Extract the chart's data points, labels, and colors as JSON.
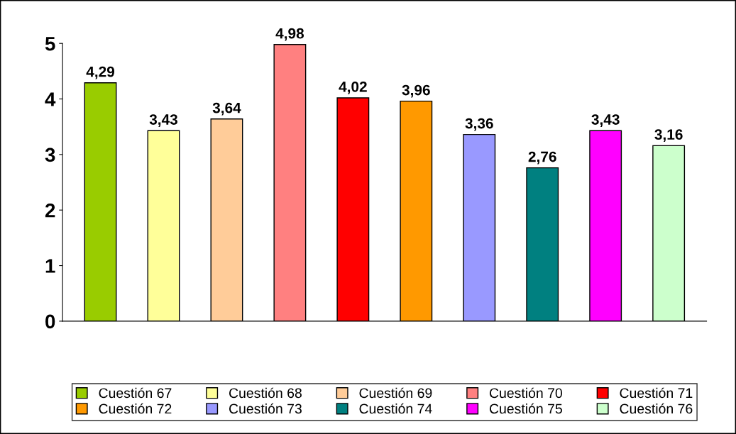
{
  "chart_data": {
    "type": "bar",
    "categories": [
      null,
      null,
      null,
      null,
      null,
      null,
      null,
      null,
      null,
      null
    ],
    "ylim": [
      0,
      5
    ],
    "yticks": [
      0,
      1,
      2,
      3,
      4,
      5
    ],
    "grid": false,
    "legend": "bottom",
    "tick_labels": "y",
    "series": [
      {
        "name": "Cuestión 67",
        "color": "#99cc00",
        "values": [
          4.29,
          null,
          null,
          null,
          null,
          null,
          null,
          null,
          null,
          null
        ],
        "value_labels": [
          "4,29",
          null,
          null,
          null,
          null,
          null,
          null,
          null,
          null,
          null
        ]
      },
      {
        "name": "Cuestión 68",
        "color": "#ffff99",
        "values": [
          null,
          3.43,
          null,
          null,
          null,
          null,
          null,
          null,
          null,
          null
        ],
        "value_labels": [
          null,
          "3,43",
          null,
          null,
          null,
          null,
          null,
          null,
          null,
          null
        ]
      },
      {
        "name": "Cuestión 69",
        "color": "#ffcc99",
        "values": [
          null,
          null,
          3.64,
          null,
          null,
          null,
          null,
          null,
          null,
          null
        ],
        "value_labels": [
          null,
          null,
          "3,64",
          null,
          null,
          null,
          null,
          null,
          null,
          null
        ]
      },
      {
        "name": "Cuestión 70",
        "color": "#ff8080",
        "values": [
          null,
          null,
          null,
          4.98,
          null,
          null,
          null,
          null,
          null,
          null
        ],
        "value_labels": [
          null,
          null,
          null,
          "4,98",
          null,
          null,
          null,
          null,
          null,
          null
        ]
      },
      {
        "name": "Cuestión 71",
        "color": "#ff0000",
        "values": [
          null,
          null,
          null,
          null,
          4.02,
          null,
          null,
          null,
          null,
          null
        ],
        "value_labels": [
          null,
          null,
          null,
          null,
          "4,02",
          null,
          null,
          null,
          null,
          null
        ]
      },
      {
        "name": "Cuestión 72",
        "color": "#ff9900",
        "values": [
          null,
          null,
          null,
          null,
          null,
          3.96,
          null,
          null,
          null,
          null
        ],
        "value_labels": [
          null,
          null,
          null,
          null,
          null,
          "3,96",
          null,
          null,
          null,
          null
        ]
      },
      {
        "name": "Cuestión 73",
        "color": "#9999ff",
        "values": [
          null,
          null,
          null,
          null,
          null,
          null,
          3.36,
          null,
          null,
          null
        ],
        "value_labels": [
          null,
          null,
          null,
          null,
          null,
          null,
          "3,36",
          null,
          null,
          null
        ]
      },
      {
        "name": "Cuestión 74",
        "color": "#008080",
        "values": [
          null,
          null,
          null,
          null,
          null,
          null,
          null,
          2.76,
          null,
          null
        ],
        "value_labels": [
          null,
          null,
          null,
          null,
          null,
          null,
          null,
          "2,76",
          null,
          null
        ]
      },
      {
        "name": "Cuestión 75",
        "color": "#ff00ff",
        "values": [
          null,
          null,
          null,
          null,
          null,
          null,
          null,
          null,
          3.43,
          null
        ],
        "value_labels": [
          null,
          null,
          null,
          null,
          null,
          null,
          null,
          null,
          "3,43",
          null
        ]
      },
      {
        "name": "Cuestión 76",
        "color": "#ccffcc",
        "values": [
          null,
          null,
          null,
          null,
          null,
          null,
          null,
          null,
          null,
          3.16
        ],
        "value_labels": [
          null,
          null,
          null,
          null,
          null,
          null,
          null,
          null,
          null,
          "3,16"
        ]
      }
    ]
  }
}
